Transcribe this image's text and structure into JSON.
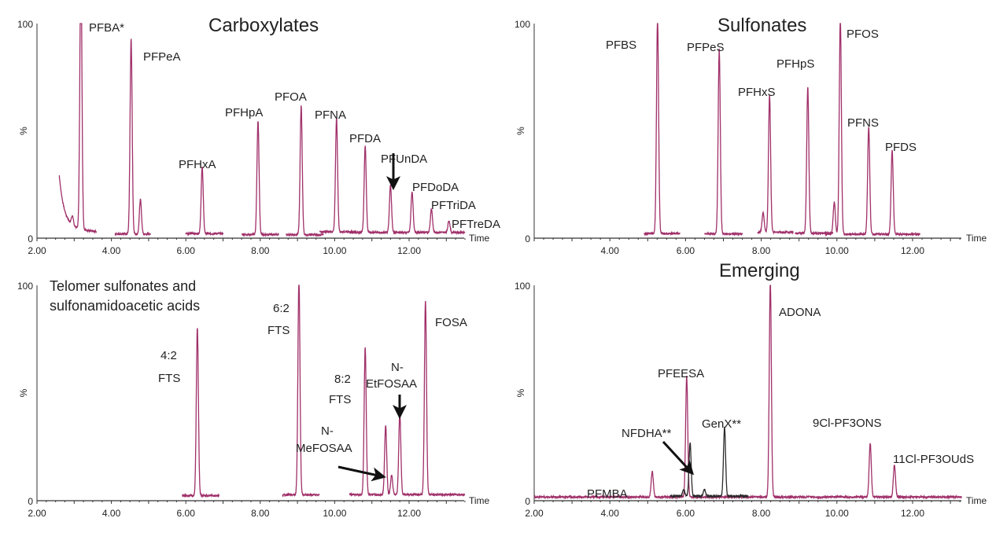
{
  "chart_data": [
    {
      "type": "line",
      "title": "Carboxylates",
      "xlabel": "Time",
      "ylabel": "%",
      "xlim": [
        2.0,
        13.5
      ],
      "ylim": [
        0,
        100
      ],
      "xticks": [
        "2.00",
        "4.00",
        "6.00",
        "8.00",
        "10.00",
        "12.00"
      ],
      "yticks": [
        "0",
        "100"
      ],
      "grid": false,
      "color": "#a0306a",
      "traces": [
        {
          "window": [
            2.6,
            3.6
          ],
          "peaks": [
            {
              "t": 3.18,
              "h": 100,
              "label": [
                "PFBA*"
              ]
            },
            {
              "t": 2.95,
              "h": 4
            }
          ],
          "start_level": 21
        },
        {
          "window": [
            4.1,
            5.05
          ],
          "peaks": [
            {
              "t": 4.53,
              "h": 91,
              "label": [
                "PFPeA"
              ]
            },
            {
              "t": 4.78,
              "h": 16
            }
          ]
        },
        {
          "window": [
            6.0,
            7.0
          ],
          "peaks": [
            {
              "t": 6.44,
              "h": 31,
              "label": [
                "PFHxA"
              ]
            }
          ]
        },
        {
          "window": [
            7.5,
            8.5
          ],
          "peaks": [
            {
              "t": 7.94,
              "h": 53,
              "label": [
                "PFHpA"
              ]
            }
          ]
        },
        {
          "window": [
            8.7,
            9.7
          ],
          "peaks": [
            {
              "t": 9.1,
              "h": 60,
              "label": [
                "PFOA"
              ]
            }
          ]
        },
        {
          "window": [
            9.6,
            10.6
          ],
          "peaks": [
            {
              "t": 10.05,
              "h": 53,
              "label": [
                "PFNA"
              ]
            }
          ]
        },
        {
          "window": [
            10.4,
            13.5
          ],
          "peaks": [
            {
              "t": 10.82,
              "h": 40,
              "label": [
                "PFDA"
              ]
            },
            {
              "t": 11.5,
              "h": 22,
              "label": [
                "PFUnDA"
              ]
            },
            {
              "t": 12.08,
              "h": 19,
              "label": [
                "PFDoDA"
              ]
            },
            {
              "t": 12.6,
              "h": 11,
              "label": [
                "PFTriDA"
              ]
            },
            {
              "t": 13.07,
              "h": 5.5,
              "label": [
                "PFTreDA"
              ]
            }
          ]
        }
      ]
    },
    {
      "type": "line",
      "title": "Sulfonates",
      "xlabel": "Time",
      "ylabel": "%",
      "xlim": [
        2.0,
        13.3
      ],
      "ylim": [
        0,
        100
      ],
      "xticks": [
        "4.00",
        "6.00",
        "8.00",
        "10.00",
        "12.00"
      ],
      "yticks": [
        "0",
        "100"
      ],
      "grid": false,
      "color": "#a0306a",
      "traces": [
        {
          "window": [
            4.9,
            5.85
          ],
          "peaks": [
            {
              "t": 5.26,
              "h": 100,
              "label": [
                "PFBS"
              ]
            }
          ]
        },
        {
          "window": [
            6.5,
            7.5
          ],
          "peaks": [
            {
              "t": 6.89,
              "h": 86,
              "label": [
                "PFPeS"
              ]
            }
          ]
        },
        {
          "window": [
            7.9,
            8.85
          ],
          "peaks": [
            {
              "t": 8.05,
              "h": 9
            },
            {
              "t": 8.22,
              "h": 64,
              "label": [
                "PFHxS"
              ]
            }
          ]
        },
        {
          "window": [
            8.9,
            9.9
          ],
          "peaks": [
            {
              "t": 9.23,
              "h": 68,
              "label": [
                "PFHpS"
              ]
            }
          ]
        },
        {
          "window": [
            9.7,
            12.2
          ],
          "peaks": [
            {
              "t": 9.93,
              "h": 15
            },
            {
              "t": 10.09,
              "h": 100,
              "label": [
                "PFOS"
              ]
            },
            {
              "t": 10.84,
              "h": 50,
              "label": [
                "PFNS"
              ]
            },
            {
              "t": 11.46,
              "h": 39,
              "label": [
                "PFDS"
              ]
            }
          ]
        }
      ]
    },
    {
      "type": "line",
      "title": "Telomer sulfonates and sulfonamidoacetic acids",
      "title_lines": [
        "Telomer sulfonates and",
        "sulfonamidoacetic acids"
      ],
      "xlabel": "Time",
      "ylabel": "%",
      "xlim": [
        2.0,
        13.5
      ],
      "ylim": [
        0,
        100
      ],
      "xticks": [
        "2.00",
        "4.00",
        "6.00",
        "8.00",
        "10.00",
        "12.00"
      ],
      "yticks": [
        "0",
        "100"
      ],
      "grid": false,
      "color": "#a0306a",
      "traces": [
        {
          "window": [
            5.9,
            6.9
          ],
          "peaks": [
            {
              "t": 6.31,
              "h": 78,
              "label": [
                "4:2",
                "FTS"
              ]
            }
          ]
        },
        {
          "window": [
            8.6,
            9.6
          ],
          "peaks": [
            {
              "t": 9.04,
              "h": 100,
              "label": [
                "6:2",
                "FTS"
              ]
            }
          ]
        },
        {
          "window": [
            10.4,
            13.5
          ],
          "peaks": [
            {
              "t": 10.82,
              "h": 68,
              "label": [
                "8:2",
                "FTS"
              ]
            },
            {
              "t": 11.37,
              "h": 32,
              "label": [
                "N-",
                "MeFOSAA"
              ]
            },
            {
              "t": 11.53,
              "h": 9
            },
            {
              "t": 11.75,
              "h": 38,
              "label": [
                "N-",
                "EtFOSAA"
              ]
            },
            {
              "t": 12.44,
              "h": 90,
              "label": [
                "FOSA"
              ]
            }
          ]
        }
      ]
    },
    {
      "type": "line",
      "title": "Emerging",
      "xlabel": "Time",
      "ylabel": "%",
      "xlim": [
        2.0,
        13.3
      ],
      "ylim": [
        0,
        100
      ],
      "xticks": [
        "2.00",
        "4.00",
        "6.00",
        "8.00",
        "10.00",
        "12.00"
      ],
      "yticks": [
        "0",
        "100"
      ],
      "grid": false,
      "colors": {
        "main": "#a0306a",
        "secondary": "#2a2a2a"
      },
      "traces": [
        {
          "window": [
            2.0,
            13.3
          ],
          "color": "main",
          "peaks": [
            {
              "t": 5.12,
              "h": 12,
              "label": [
                "PFMBA"
              ]
            },
            {
              "t": 6.03,
              "h": 56,
              "label": [
                "PFEESA"
              ]
            },
            {
              "t": 8.24,
              "h": 100,
              "label": [
                "ADONA"
              ]
            },
            {
              "t": 10.88,
              "h": 25,
              "label": [
                "9Cl-PF3ONS"
              ]
            },
            {
              "t": 11.52,
              "h": 15,
              "label": [
                "11Cl-PF3OUdS"
              ]
            }
          ]
        },
        {
          "window": [
            5.6,
            7.65
          ],
          "color": "secondary",
          "peaks": [
            {
              "t": 5.95,
              "h": 3
            },
            {
              "t": 6.12,
              "h": 25,
              "label": [
                "NFDHA**"
              ]
            },
            {
              "t": 6.5,
              "h": 3
            },
            {
              "t": 7.03,
              "h": 32,
              "label": [
                "GenX**"
              ]
            }
          ]
        }
      ]
    }
  ]
}
